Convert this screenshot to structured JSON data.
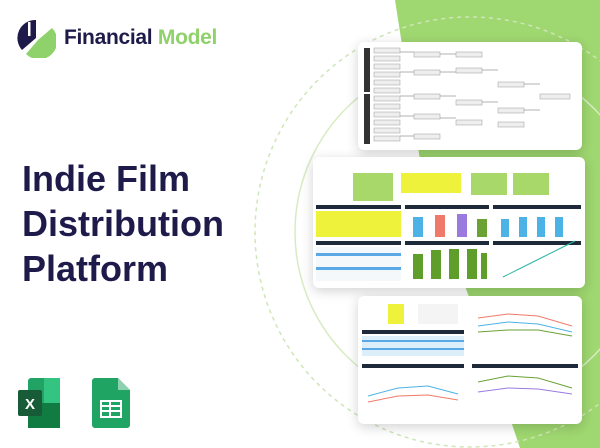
{
  "brand": {
    "name_part1": "Financial",
    "name_part2": "Model"
  },
  "title": {
    "line1": "Indie Film",
    "line2": "Distribution",
    "line3": "Platform"
  },
  "colors": {
    "navy": "#1e1b4b",
    "green": "#8fd16a",
    "excel": "#1f7a45",
    "sheets": "#1fa463"
  },
  "icons": [
    "excel-icon",
    "google-sheets-icon"
  ],
  "previews": [
    "diagram-preview",
    "dashboard-preview",
    "charts-preview"
  ]
}
